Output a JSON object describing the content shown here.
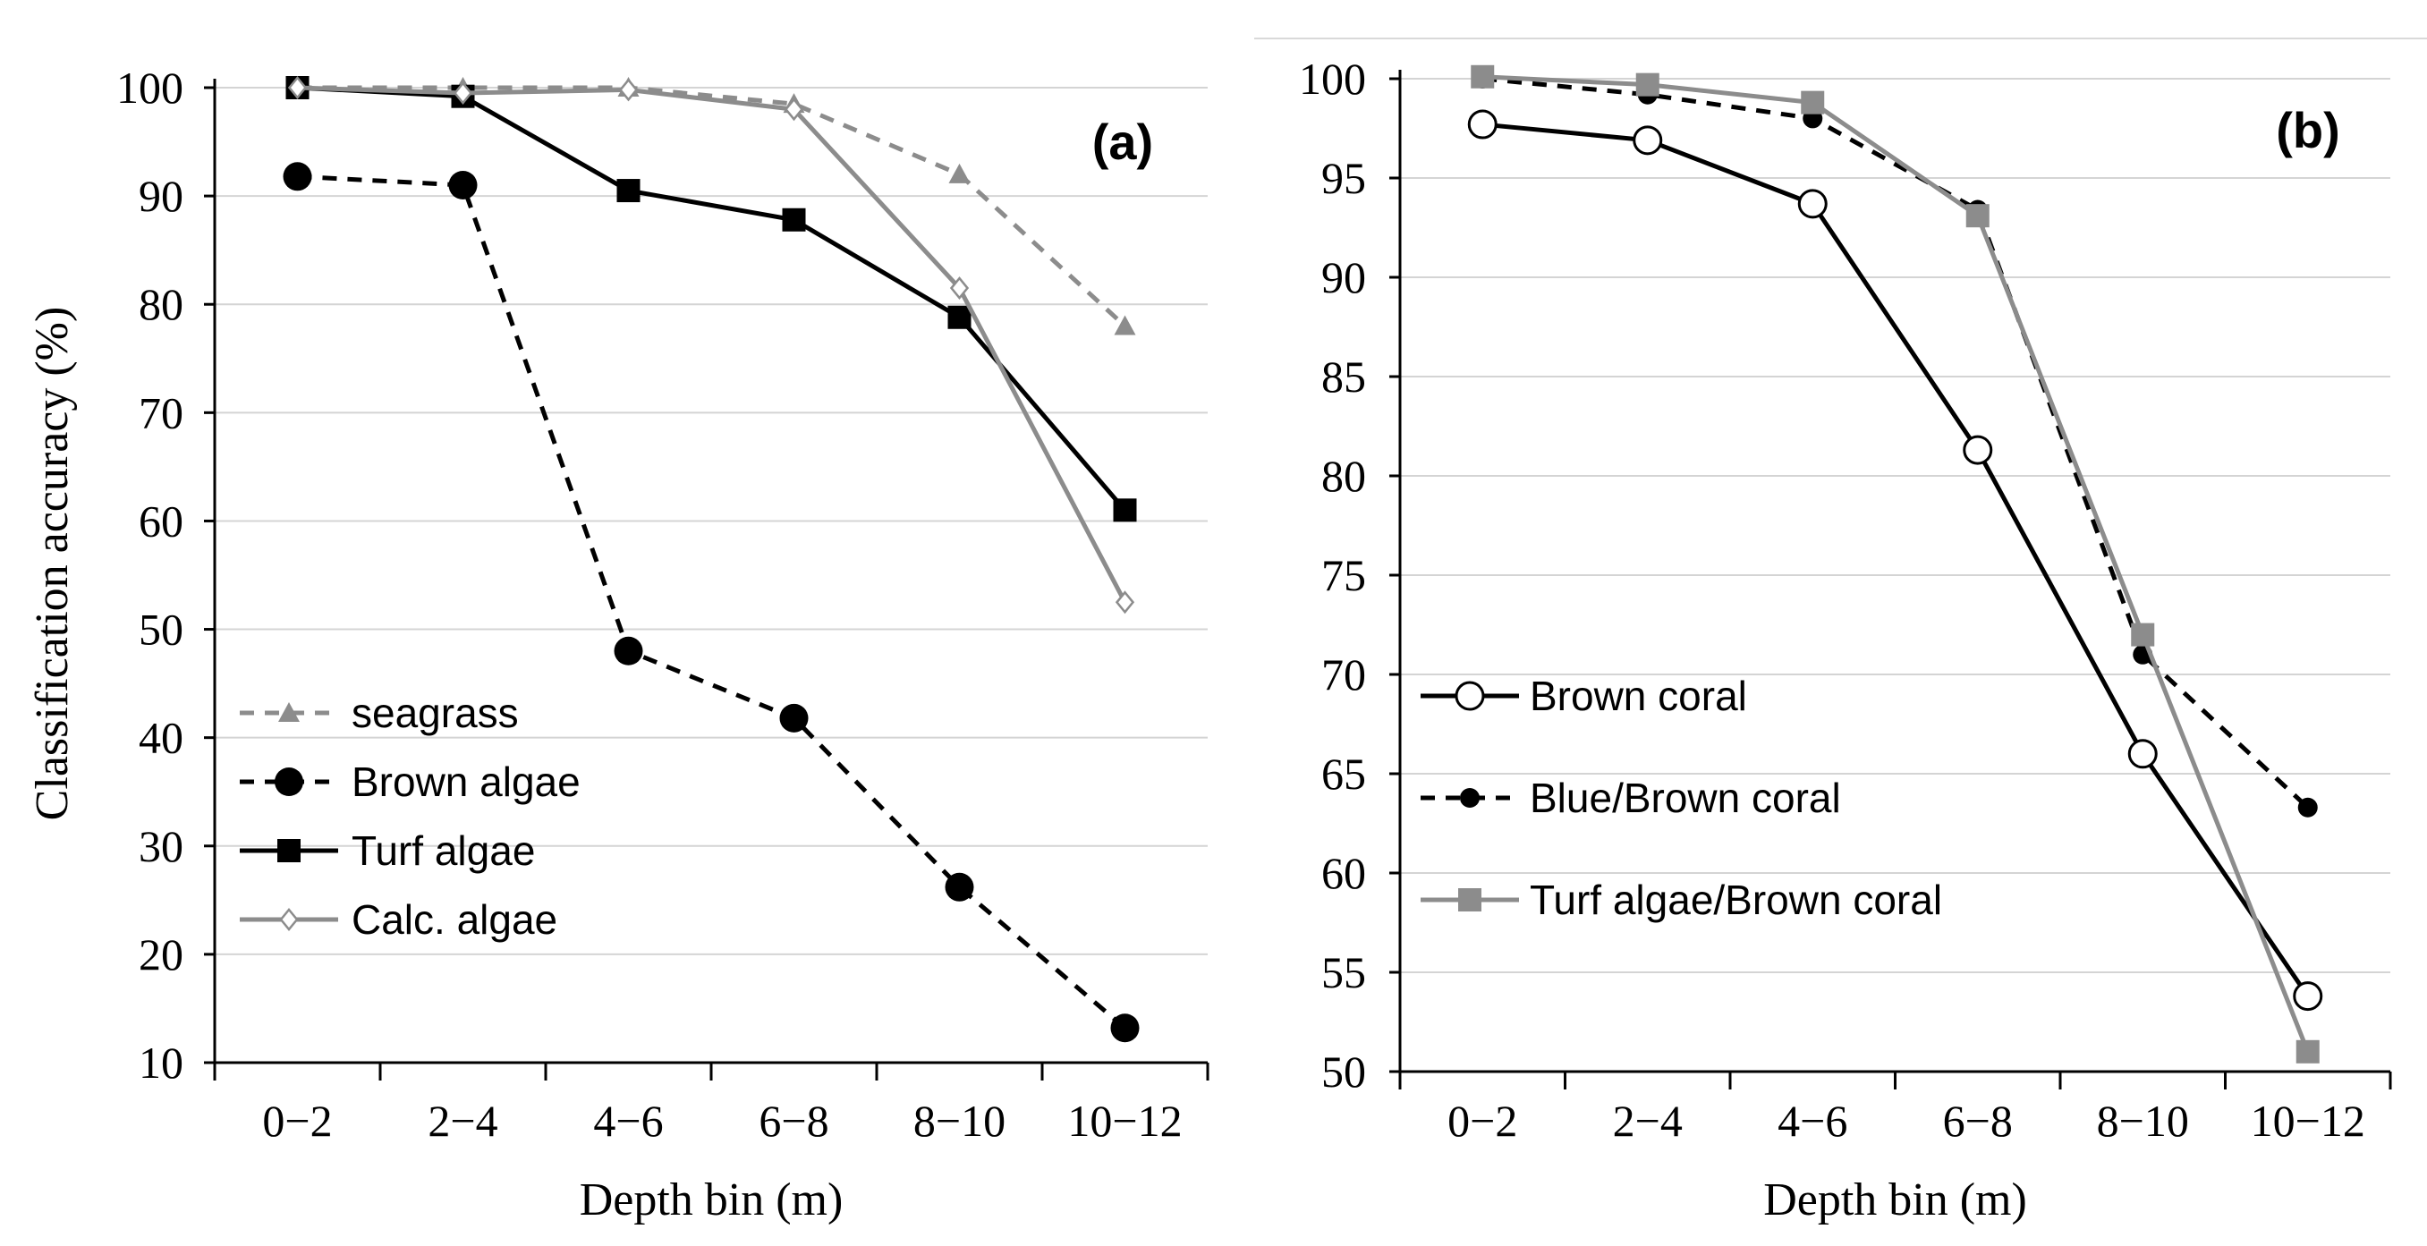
{
  "chart_data": [
    {
      "type": "line",
      "panel_label": "(a)",
      "xlabel": "Depth bin (m)",
      "ylabel": "Classification accuracy  (%)",
      "categories": [
        "0−2",
        "2−4",
        "4−6",
        "6−8",
        "8−10",
        "10−12"
      ],
      "ylim": [
        10,
        100
      ],
      "yticks": [
        "100",
        "90",
        "80",
        "70",
        "60",
        "50",
        "40",
        "30",
        "20",
        "10"
      ],
      "grid": true,
      "legend_position": "bottom-left",
      "series": [
        {
          "name": "seagrass",
          "values": [
            100,
            100,
            100,
            98.5,
            92,
            78
          ],
          "color": "#8c8c8c",
          "dash": "dashed",
          "marker": "triangle-filled"
        },
        {
          "name": "Brown algae",
          "values": [
            91.8,
            91,
            48,
            41.8,
            26.2,
            13.2
          ],
          "color": "#000000",
          "dash": "dashed",
          "marker": "circle-filled"
        },
        {
          "name": "Turf algae",
          "values": [
            100,
            99.2,
            90.5,
            87.8,
            78.8,
            61
          ],
          "color": "#000000",
          "dash": "solid",
          "marker": "square-filled"
        },
        {
          "name": "Calc. algae",
          "values": [
            100,
            99.5,
            99.8,
            98,
            81.5,
            52.5
          ],
          "color": "#8c8c8c",
          "dash": "solid",
          "marker": "diamond-open"
        }
      ]
    },
    {
      "type": "line",
      "panel_label": "(b)",
      "xlabel": "Depth bin (m)",
      "ylabel": "",
      "categories": [
        "0−2",
        "2−4",
        "4−6",
        "6−8",
        "8−10",
        "10−12"
      ],
      "ylim": [
        50,
        100
      ],
      "yticks": [
        "100",
        "95",
        "90",
        "85",
        "80",
        "75",
        "70",
        "65",
        "60",
        "55",
        "50"
      ],
      "grid": true,
      "legend_position": "middle-left",
      "series": [
        {
          "name": "Brown coral",
          "values": [
            97.7,
            96.9,
            93.7,
            81.3,
            66,
            53.8
          ],
          "color": "#000000",
          "dash": "solid",
          "marker": "circle-open"
        },
        {
          "name": "Blue/Brown coral",
          "values": [
            100,
            99.2,
            98,
            93.4,
            71,
            63.3
          ],
          "color": "#000000",
          "dash": "dashed",
          "marker": "circle-filled-small"
        },
        {
          "name": "Turf algae/Brown coral",
          "values": [
            100.1,
            99.7,
            98.8,
            93.1,
            72,
            51
          ],
          "color": "#8c8c8c",
          "dash": "solid",
          "marker": "square-filled"
        }
      ]
    }
  ]
}
